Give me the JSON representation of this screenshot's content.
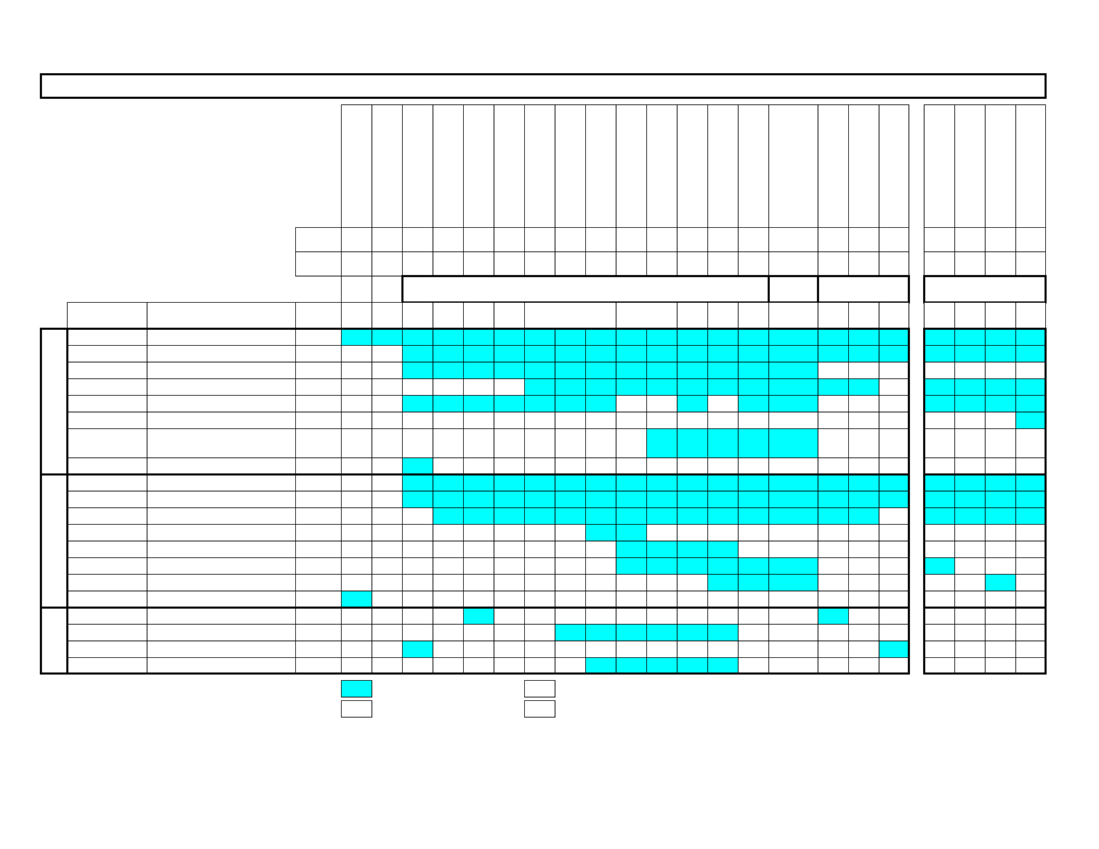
{
  "matrix": {
    "fill_color": "#00ffff",
    "filled_cells": [
      [
        0,
        1,
        2,
        3,
        4,
        5,
        6,
        7,
        8,
        9,
        10,
        11,
        12,
        13,
        14,
        15,
        16,
        17,
        18,
        19,
        20,
        21
      ],
      [
        2,
        3,
        4,
        5,
        6,
        7,
        8,
        9,
        10,
        11,
        12,
        13,
        14,
        15,
        16,
        17,
        18,
        19,
        20,
        21
      ],
      [
        2,
        3,
        4,
        5,
        6,
        7,
        8,
        9,
        10,
        11,
        12,
        13,
        14
      ],
      [
        6,
        7,
        8,
        9,
        10,
        11,
        12,
        13,
        14,
        15,
        16,
        18,
        19,
        20,
        21
      ],
      [
        2,
        3,
        4,
        5,
        6,
        7,
        8,
        11,
        13,
        14,
        18,
        19,
        20,
        21
      ],
      [
        21
      ],
      [
        10,
        11,
        12,
        13,
        14
      ],
      [
        2
      ],
      [
        2,
        3,
        4,
        5,
        6,
        7,
        8,
        9,
        10,
        11,
        12,
        13,
        14,
        15,
        16,
        17,
        18,
        19,
        20,
        21
      ],
      [
        2,
        3,
        4,
        5,
        6,
        7,
        8,
        9,
        10,
        11,
        12,
        13,
        14,
        15,
        16,
        17,
        18,
        19,
        20,
        21
      ],
      [
        3,
        4,
        5,
        6,
        7,
        8,
        9,
        10,
        11,
        12,
        13,
        14,
        15,
        16,
        18,
        19,
        20,
        21
      ],
      [
        8,
        9
      ],
      [
        9,
        10,
        11,
        12
      ],
      [
        9,
        10,
        11,
        12,
        13,
        14,
        18
      ],
      [
        12,
        13,
        14,
        20
      ],
      [
        0
      ],
      [
        4,
        15
      ],
      [
        7,
        8,
        9,
        10,
        11,
        12
      ],
      [
        2,
        17
      ],
      [
        8,
        9,
        10,
        11,
        12
      ]
    ]
  }
}
